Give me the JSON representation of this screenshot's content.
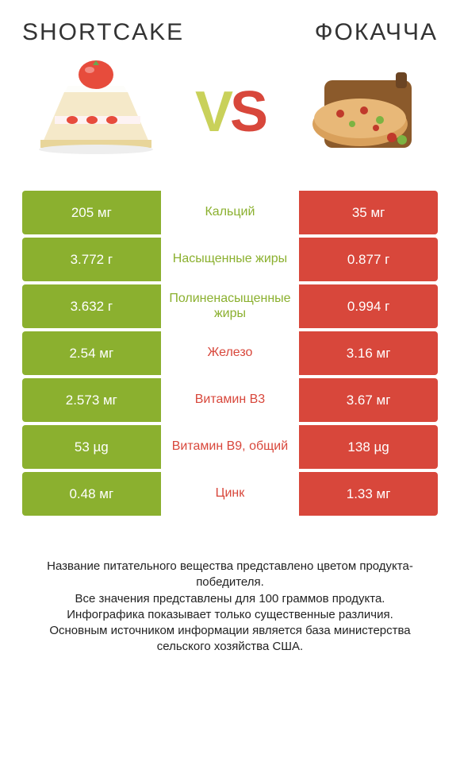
{
  "colors": {
    "green": "#8bb02f",
    "red": "#d8473b",
    "vs_green": "#c9d15a",
    "text": "#222222",
    "background": "#ffffff"
  },
  "typography": {
    "title_fontsize": 30,
    "vs_fontsize": 72,
    "cell_fontsize": 17,
    "label_fontsize": 16,
    "footer_fontsize": 15
  },
  "header": {
    "left_title": "SHORTCAKE",
    "right_title": "ФОКАЧЧА",
    "vs_v": "V",
    "vs_s": "S"
  },
  "rows": [
    {
      "label": "Кальций",
      "left": "205 мг",
      "right": "35 мг",
      "winner": "left"
    },
    {
      "label": "Насыщенные жиры",
      "left": "3.772 г",
      "right": "0.877 г",
      "winner": "left"
    },
    {
      "label": "Полиненасыщенные жиры",
      "left": "3.632 г",
      "right": "0.994 г",
      "winner": "left"
    },
    {
      "label": "Железо",
      "left": "2.54 мг",
      "right": "3.16 мг",
      "winner": "right"
    },
    {
      "label": "Витамин B3",
      "left": "2.573 мг",
      "right": "3.67 мг",
      "winner": "right"
    },
    {
      "label": "Витамин B9, общий",
      "left": "53 µg",
      "right": "138 µg",
      "winner": "right"
    },
    {
      "label": "Цинк",
      "left": "0.48 мг",
      "right": "1.33 мг",
      "winner": "right"
    }
  ],
  "footer": {
    "line1": "Название питательного вещества представлено цветом продукта-победителя.",
    "line2": "Все значения представлены для 100 граммов продукта.",
    "line3": "Инфографика показывает только существенные различия.",
    "line4": "Основным источником информации является база министерства сельского хозяйства США."
  }
}
